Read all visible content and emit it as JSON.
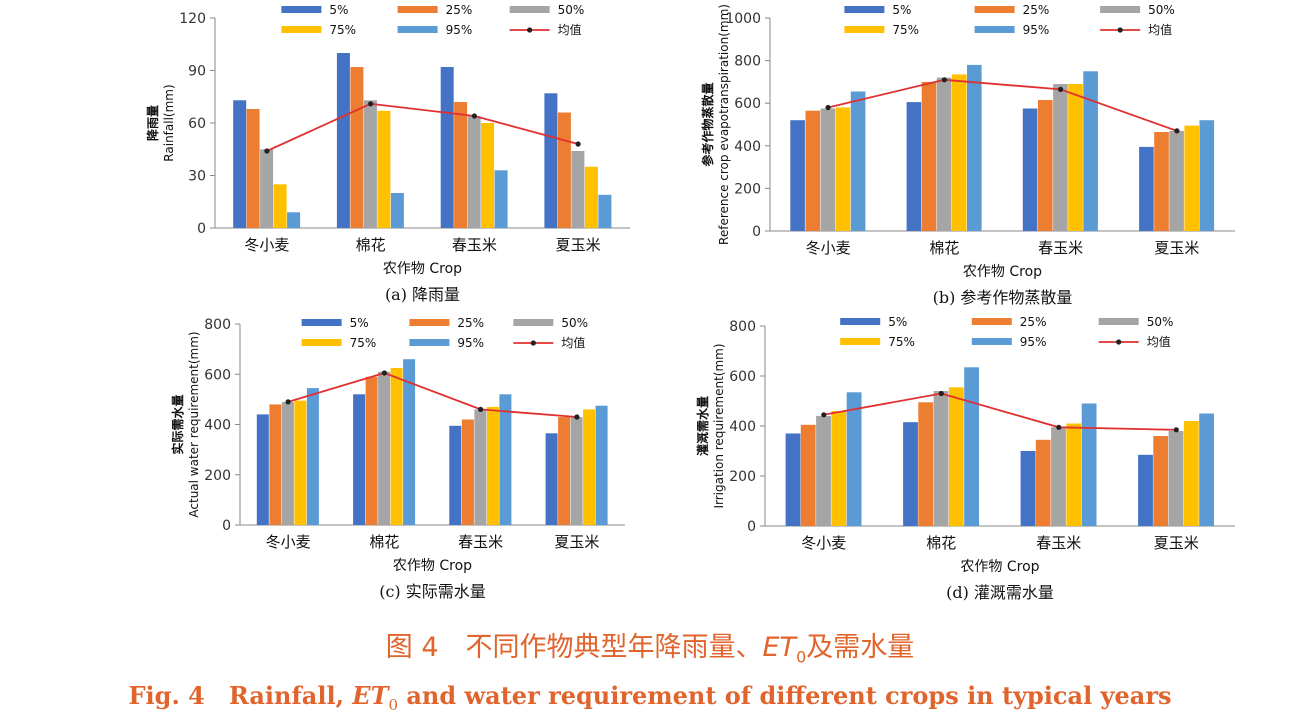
{
  "figure": {
    "caption_cn": {
      "prefix": "图 4　不同作物典型年降雨量、",
      "et_main": "ET",
      "et_sub": "0",
      "suffix": "及需水量"
    },
    "caption_en": {
      "prefix": "Fig. 4　Rainfall,",
      "et_main": "ET",
      "et_sub": "0",
      "suffix": "and water requirement of different crops in typical years"
    }
  },
  "colors": {
    "5%": "#4472c4",
    "25%": "#ed7d31",
    "50%": "#a5a5a5",
    "75%": "#ffc000",
    "95%": "#5b9bd5",
    "均值": "#e03030"
  },
  "chart_data": [
    {
      "type": "bar",
      "caption": "(a) 降雨量",
      "categories": [
        "冬小麦",
        "棉花",
        "春玉米",
        "夏玉米"
      ],
      "xlabel": "农作物 Crop",
      "ylabel_cn": "降雨量",
      "ylabel_en": "Rainfall(mm)",
      "ylim": [
        0,
        120
      ],
      "yticks": [
        0,
        30,
        60,
        90,
        120
      ],
      "series": [
        {
          "name": "5%",
          "values": [
            73,
            100,
            92,
            77
          ]
        },
        {
          "name": "25%",
          "values": [
            68,
            92,
            72,
            66
          ]
        },
        {
          "name": "50%",
          "values": [
            45,
            73,
            64,
            44
          ]
        },
        {
          "name": "75%",
          "values": [
            25,
            67,
            60,
            35
          ]
        },
        {
          "name": "95%",
          "values": [
            9,
            20,
            33,
            19
          ]
        }
      ],
      "line": {
        "name": "均值",
        "values": [
          44,
          71,
          64,
          48
        ]
      }
    },
    {
      "type": "bar",
      "caption": "(b) 参考作物蒸散量",
      "categories": [
        "冬小麦",
        "棉花",
        "春玉米",
        "夏玉米"
      ],
      "xlabel": "农作物 Crop",
      "ylabel_cn": "参考作物蒸散量",
      "ylabel_en": "Reference crop evapotranspiration(mm)",
      "ylim": [
        0,
        1000
      ],
      "yticks": [
        0,
        200,
        400,
        600,
        800,
        1000
      ],
      "series": [
        {
          "name": "5%",
          "values": [
            520,
            605,
            575,
            395
          ]
        },
        {
          "name": "25%",
          "values": [
            565,
            700,
            615,
            465
          ]
        },
        {
          "name": "50%",
          "values": [
            575,
            720,
            690,
            470
          ]
        },
        {
          "name": "75%",
          "values": [
            580,
            735,
            690,
            495
          ]
        },
        {
          "name": "95%",
          "values": [
            655,
            780,
            750,
            520
          ]
        }
      ],
      "line": {
        "name": "均值",
        "values": [
          580,
          710,
          665,
          470
        ]
      }
    },
    {
      "type": "bar",
      "caption": "(c) 实际需水量",
      "categories": [
        "冬小麦",
        "棉花",
        "春玉米",
        "夏玉米"
      ],
      "xlabel": "农作物 Crop",
      "ylabel_cn": "实际需水量",
      "ylabel_en": "Actual water requirement(mm)",
      "ylim": [
        0,
        800
      ],
      "yticks": [
        0,
        200,
        400,
        600,
        800
      ],
      "series": [
        {
          "name": "5%",
          "values": [
            440,
            520,
            395,
            365
          ]
        },
        {
          "name": "25%",
          "values": [
            480,
            590,
            420,
            430
          ]
        },
        {
          "name": "50%",
          "values": [
            490,
            610,
            460,
            430
          ]
        },
        {
          "name": "75%",
          "values": [
            495,
            625,
            470,
            460
          ]
        },
        {
          "name": "95%",
          "values": [
            545,
            660,
            520,
            475
          ]
        }
      ],
      "line": {
        "name": "均值",
        "values": [
          490,
          605,
          460,
          430
        ]
      }
    },
    {
      "type": "bar",
      "caption": "(d) 灌溉需水量",
      "categories": [
        "冬小麦",
        "棉花",
        "春玉米",
        "夏玉米"
      ],
      "xlabel": "农作物 Crop",
      "ylabel_cn": "灌溉需水量",
      "ylabel_en": "Irrigation requirement(mm)",
      "ylim": [
        0,
        800
      ],
      "yticks": [
        0,
        200,
        400,
        600,
        800
      ],
      "series": [
        {
          "name": "5%",
          "values": [
            370,
            415,
            300,
            285
          ]
        },
        {
          "name": "25%",
          "values": [
            405,
            495,
            345,
            360
          ]
        },
        {
          "name": "50%",
          "values": [
            440,
            540,
            395,
            380
          ]
        },
        {
          "name": "75%",
          "values": [
            460,
            555,
            410,
            420
          ]
        },
        {
          "name": "95%",
          "values": [
            535,
            635,
            490,
            450
          ]
        }
      ],
      "line": {
        "name": "均值",
        "values": [
          445,
          530,
          395,
          385
        ]
      }
    }
  ]
}
